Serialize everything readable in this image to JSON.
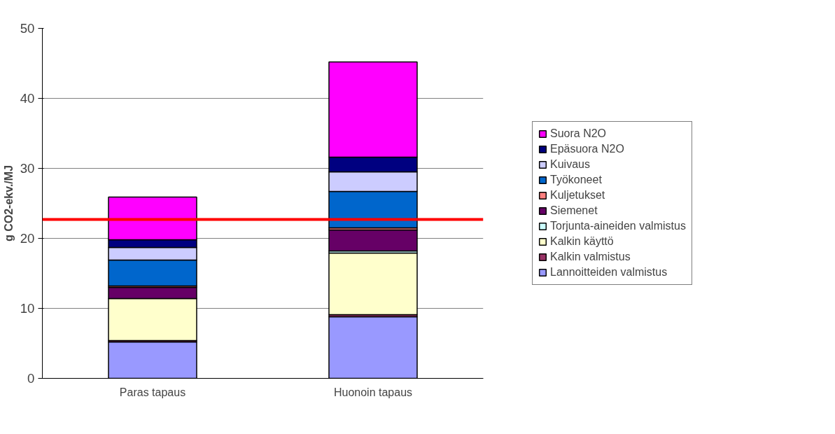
{
  "chart_data": {
    "type": "bar",
    "stacked": true,
    "ylabel": "g CO2-ekv./MJ",
    "categories": [
      "Paras tapaus",
      "Huonoin tapaus"
    ],
    "series": [
      {
        "name": "Lannoitteiden valmistus",
        "color": "#9999ff",
        "values": [
          5.2,
          8.8
        ]
      },
      {
        "name": "Kalkin valmistus",
        "color": "#993366",
        "values": [
          0.2,
          0.3
        ]
      },
      {
        "name": "Kalkin käyttö",
        "color": "#ffffcc",
        "values": [
          6.0,
          8.8
        ]
      },
      {
        "name": "Torjunta-aineiden valmistus",
        "color": "#ccffff",
        "values": [
          null,
          0.3
        ]
      },
      {
        "name": "Siemenet",
        "color": "#660066",
        "values": [
          1.6,
          3.0
        ]
      },
      {
        "name": "Kuljetukset",
        "color": "#ff8080",
        "values": [
          0.2,
          0.3
        ]
      },
      {
        "name": "Työkoneet",
        "color": "#0066cc",
        "values": [
          3.7,
          5.2
        ]
      },
      {
        "name": "Kuivaus",
        "color": "#ccccff",
        "values": [
          1.8,
          2.8
        ]
      },
      {
        "name": "Epäsuora N2O",
        "color": "#000080",
        "values": [
          1.1,
          2.1
        ]
      },
      {
        "name": "Suora N2O",
        "color": "#ff00ff",
        "values": [
          6.1,
          13.6
        ]
      }
    ],
    "ylim": [
      0,
      50
    ],
    "yticks": [
      0,
      10,
      20,
      30,
      40,
      50
    ],
    "grid": "y",
    "legend": "right",
    "ref_lines": [
      {
        "axis": "y",
        "value": 22.7,
        "color": "#ff0000"
      }
    ]
  }
}
